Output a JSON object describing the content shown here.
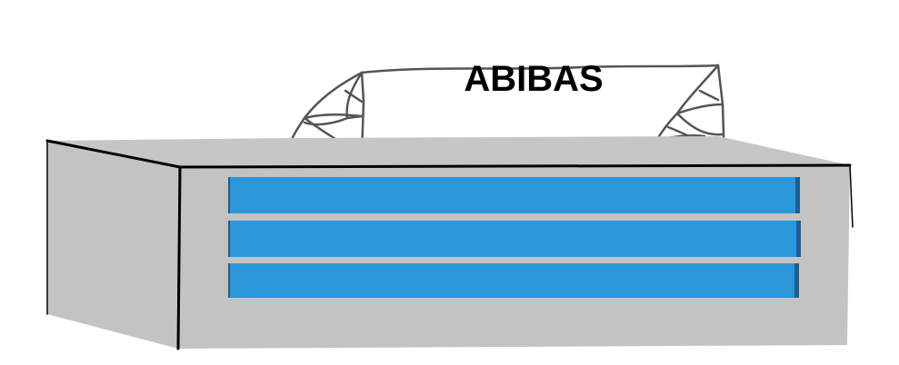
{
  "sign": {
    "text": "ABIBAS"
  },
  "colors": {
    "background": "#ffffff",
    "cabinet_body": "#c3c3c3",
    "cabinet_outline": "#000000",
    "slat_fill": "#2b97db",
    "slat_shadow": "#1d5f8e",
    "sketch_line": "#555555",
    "sign_text": "#000000"
  }
}
